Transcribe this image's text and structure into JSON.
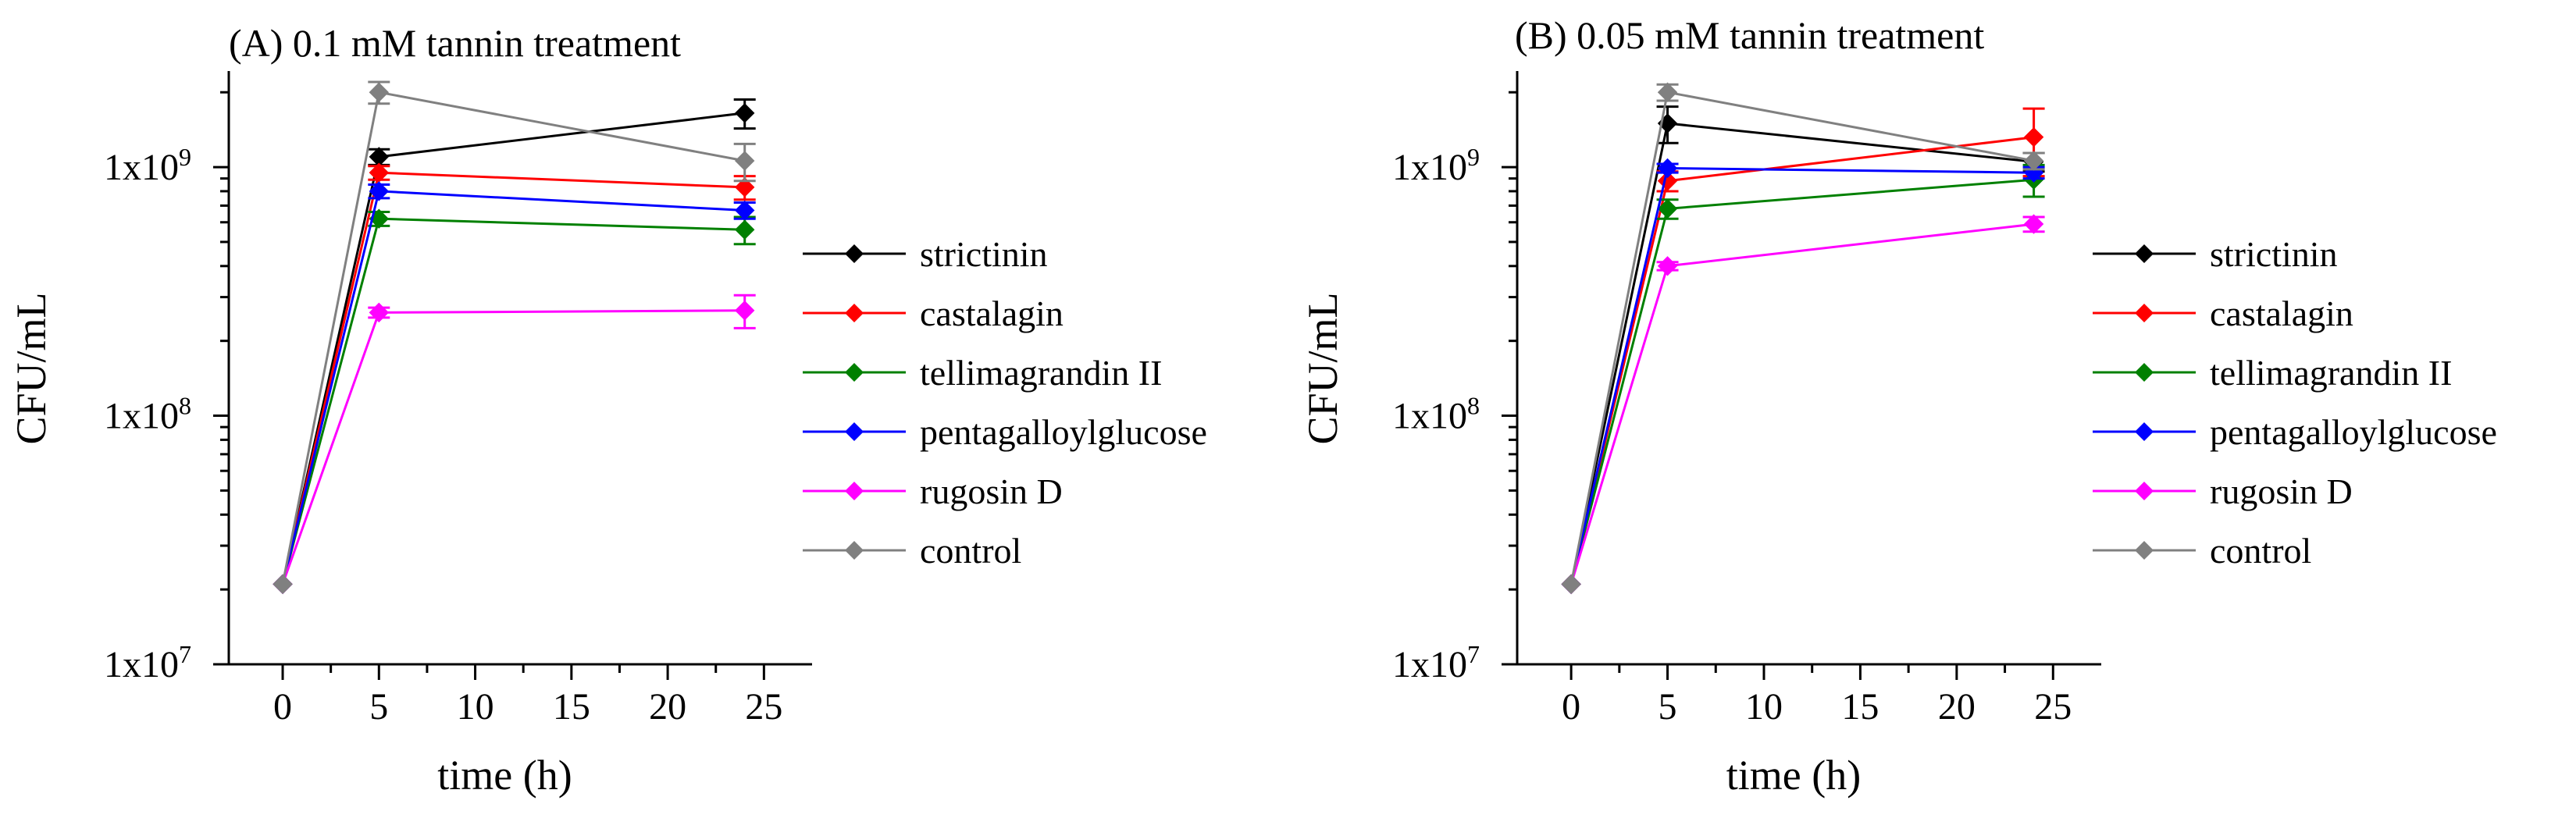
{
  "chart_data": [
    {
      "type": "line",
      "title": "(A) 0.1 mM tannin treatment",
      "xlabel": "time (h)",
      "ylabel": "CFU/mL",
      "yscale": "log",
      "xlim": [
        -2.8,
        27.5
      ],
      "ylim": [
        10000000,
        2400000000
      ],
      "xticks": [
        0,
        5,
        10,
        15,
        20,
        25
      ],
      "xtick_labels": [
        "0",
        "5",
        "10",
        "15",
        "20",
        "25"
      ],
      "yticks": [
        10000000,
        100000000,
        1000000000
      ],
      "ytick_labels": [
        {
          "base": "1x10",
          "exp": "7"
        },
        {
          "base": "1x10",
          "exp": "8"
        },
        {
          "base": "1x10",
          "exp": "9"
        }
      ],
      "legend": "right",
      "series": [
        {
          "name": "strictinin",
          "color": "#000000",
          "x": [
            0,
            5,
            24
          ],
          "y": [
            21000000,
            1100000000,
            1650000000
          ],
          "err": [
            0,
            80000000,
            220000000
          ]
        },
        {
          "name": "castalagin",
          "color": "#ff0000",
          "x": [
            0,
            5,
            24
          ],
          "y": [
            21000000,
            950000000,
            830000000
          ],
          "err": [
            0,
            60000000,
            90000000
          ]
        },
        {
          "name": "tellimagrandin II",
          "color": "#008000",
          "x": [
            0,
            5,
            24
          ],
          "y": [
            21000000,
            620000000,
            560000000
          ],
          "err": [
            0,
            40000000,
            70000000
          ]
        },
        {
          "name": "pentagalloylglucose",
          "color": "#0000ff",
          "x": [
            0,
            5,
            24
          ],
          "y": [
            21000000,
            800000000,
            670000000
          ],
          "err": [
            0,
            50000000,
            50000000
          ]
        },
        {
          "name": "rugosin D",
          "color": "#ff00ff",
          "x": [
            0,
            5,
            24
          ],
          "y": [
            21000000,
            260000000,
            265000000
          ],
          "err": [
            0,
            12000000,
            40000000
          ]
        },
        {
          "name": "control",
          "color": "#808080",
          "x": [
            0,
            5,
            24
          ],
          "y": [
            21000000,
            2000000000,
            1060000000
          ],
          "err": [
            0,
            200000000,
            180000000
          ]
        }
      ]
    },
    {
      "type": "line",
      "title": "(B) 0.05 mM tannin treatment",
      "xlabel": "time (h)",
      "ylabel": "CFU/mL",
      "yscale": "log",
      "xlim": [
        -2.8,
        27.5
      ],
      "ylim": [
        10000000,
        2400000000
      ],
      "xticks": [
        0,
        5,
        10,
        15,
        20,
        25
      ],
      "xtick_labels": [
        "0",
        "5",
        "10",
        "15",
        "20",
        "25"
      ],
      "yticks": [
        10000000,
        100000000,
        1000000000
      ],
      "ytick_labels": [
        {
          "base": "1x10",
          "exp": "7"
        },
        {
          "base": "1x10",
          "exp": "8"
        },
        {
          "base": "1x10",
          "exp": "9"
        }
      ],
      "legend": "right",
      "series": [
        {
          "name": "strictinin",
          "color": "#000000",
          "x": [
            0,
            5,
            24
          ],
          "y": [
            21000000,
            1500000000,
            1050000000
          ],
          "err": [
            0,
            250000000,
            90000000
          ]
        },
        {
          "name": "castalagin",
          "color": "#ff0000",
          "x": [
            0,
            5,
            24
          ],
          "y": [
            21000000,
            880000000,
            1320000000
          ],
          "err": [
            0,
            80000000,
            400000000
          ]
        },
        {
          "name": "tellimagrandin II",
          "color": "#008000",
          "x": [
            0,
            5,
            24
          ],
          "y": [
            21000000,
            680000000,
            890000000
          ],
          "err": [
            0,
            60000000,
            130000000
          ]
        },
        {
          "name": "pentagalloylglucose",
          "color": "#0000ff",
          "x": [
            0,
            5,
            24
          ],
          "y": [
            21000000,
            990000000,
            950000000
          ],
          "err": [
            0,
            40000000,
            50000000
          ]
        },
        {
          "name": "rugosin D",
          "color": "#ff00ff",
          "x": [
            0,
            5,
            24
          ],
          "y": [
            21000000,
            400000000,
            590000000
          ],
          "err": [
            0,
            15000000,
            40000000
          ]
        },
        {
          "name": "control",
          "color": "#808080",
          "x": [
            0,
            5,
            24
          ],
          "y": [
            21000000,
            2000000000,
            1060000000
          ],
          "err": [
            0,
            150000000,
            80000000
          ]
        }
      ]
    }
  ]
}
